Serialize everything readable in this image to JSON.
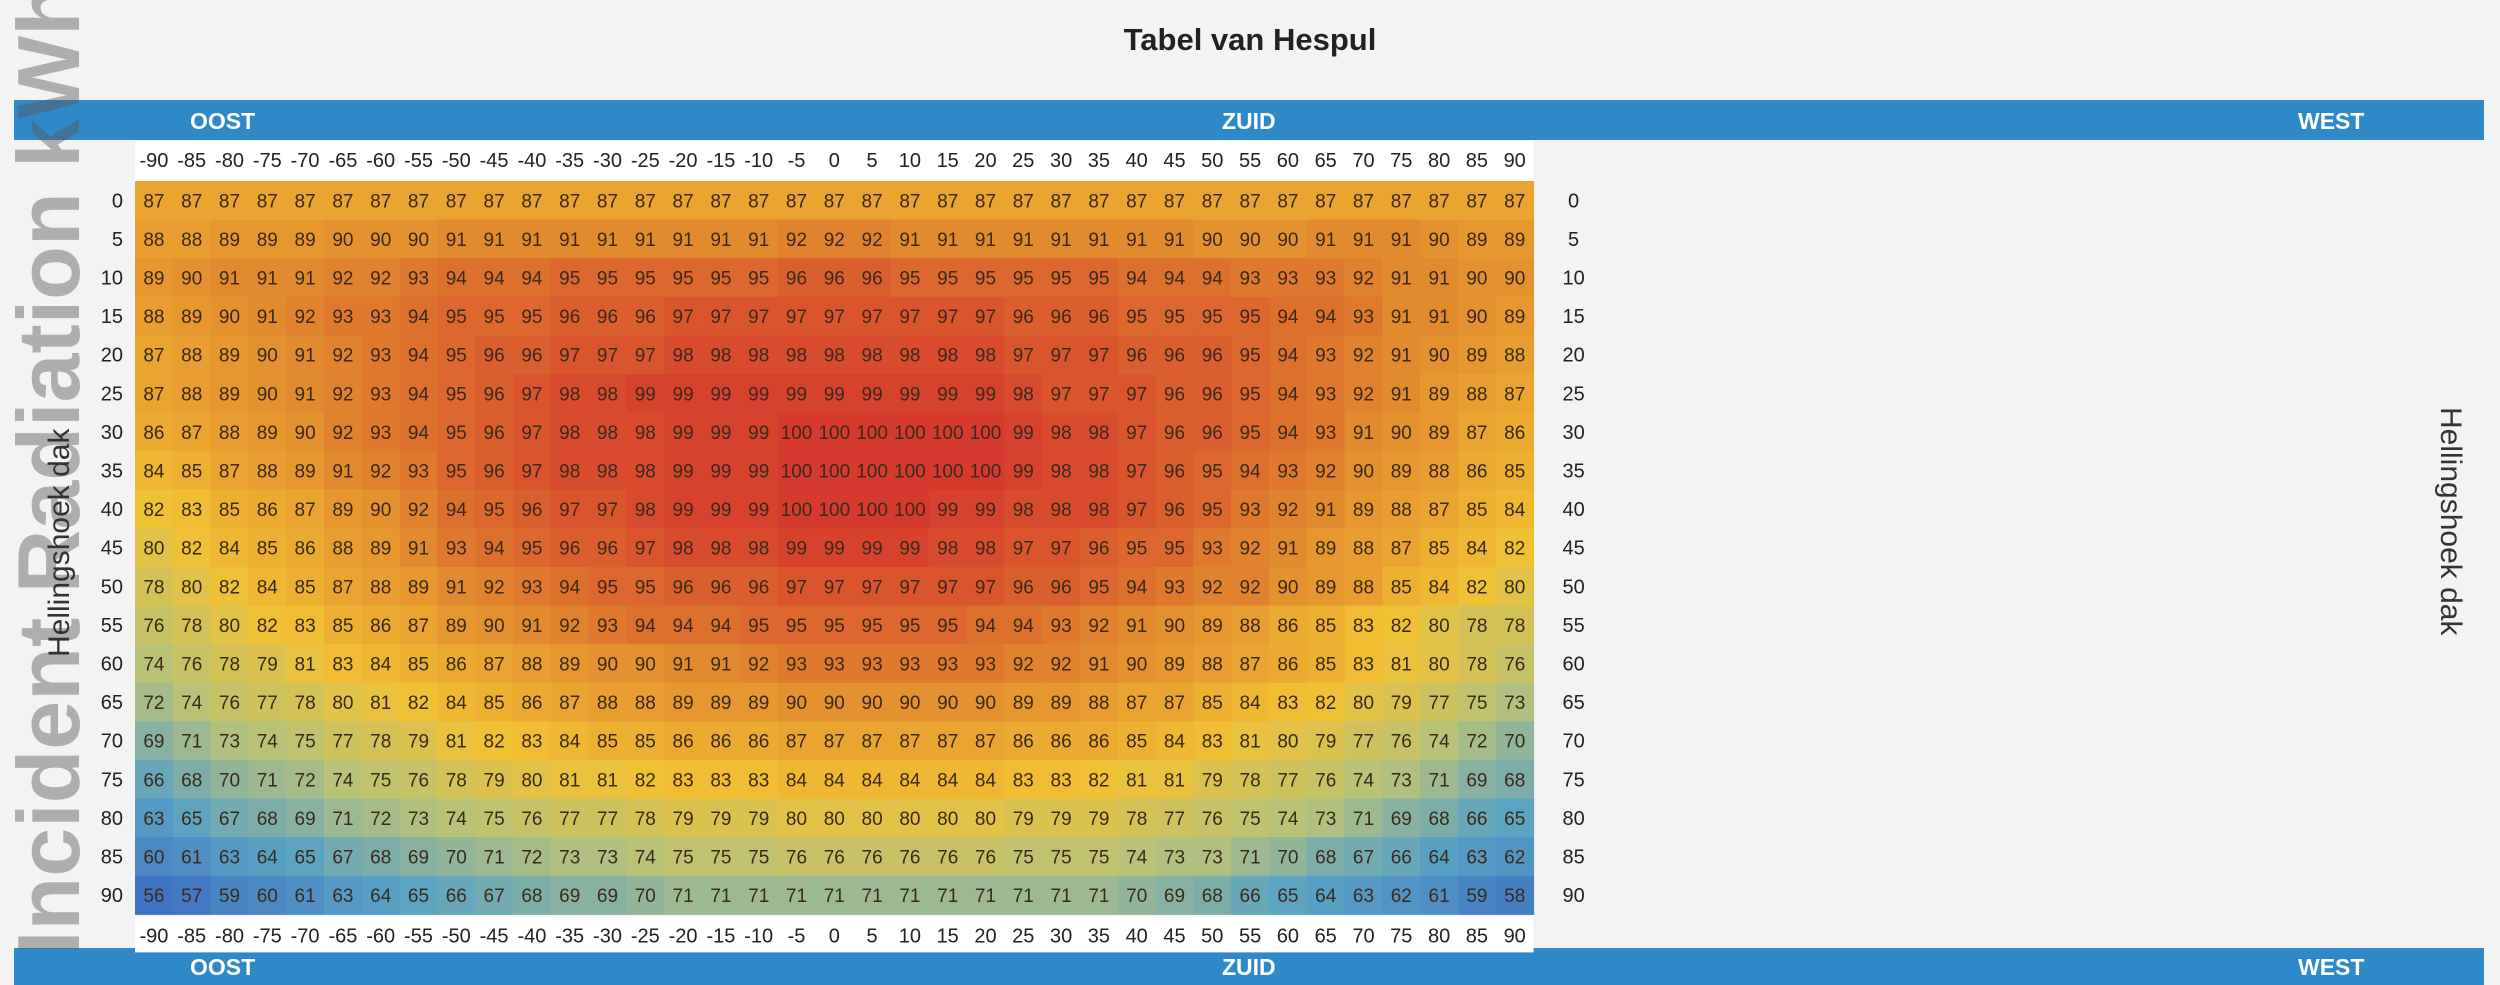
{
  "chart_data": {
    "type": "heatmap",
    "title": "Tabel van Hespul",
    "watermark": "Incident Radiation kWh/day/m",
    "top_band": {
      "left": "OOST",
      "center": "ZUID",
      "right": "WEST"
    },
    "bottom_band": {
      "left": "OOST",
      "center": "ZUID",
      "right": "WEST"
    },
    "ylabel_left": "Hellingshoek dak",
    "ylabel_right": "Hellingshoek dak",
    "x": [
      -90,
      -85,
      -80,
      -75,
      -70,
      -65,
      -60,
      -55,
      -50,
      -45,
      -40,
      -35,
      -30,
      -25,
      -20,
      -15,
      -10,
      -5,
      0,
      5,
      10,
      15,
      20,
      25,
      30,
      35,
      40,
      45,
      50,
      55,
      60,
      65,
      70,
      75,
      80,
      85,
      90
    ],
    "y": [
      0,
      5,
      10,
      15,
      20,
      25,
      30,
      35,
      40,
      45,
      50,
      55,
      60,
      65,
      70,
      75,
      80,
      85,
      90
    ],
    "values": [
      [
        87,
        87,
        87,
        87,
        87,
        87,
        87,
        87,
        87,
        87,
        87,
        87,
        87,
        87,
        87,
        87,
        87,
        87,
        87,
        87,
        87,
        87,
        87,
        87,
        87,
        87,
        87,
        87,
        87,
        87,
        87,
        87,
        87,
        87,
        87,
        87,
        87
      ],
      [
        88,
        88,
        89,
        89,
        89,
        90,
        90,
        90,
        91,
        91,
        91,
        91,
        91,
        91,
        91,
        91,
        91,
        92,
        92,
        92,
        91,
        91,
        91,
        91,
        91,
        91,
        91,
        91,
        90,
        90,
        90,
        91,
        91,
        91,
        90,
        89,
        89
      ],
      [
        89,
        90,
        91,
        91,
        91,
        92,
        92,
        93,
        94,
        94,
        94,
        95,
        95,
        95,
        95,
        95,
        95,
        96,
        96,
        96,
        95,
        95,
        95,
        95,
        95,
        95,
        94,
        94,
        94,
        93,
        93,
        93,
        92,
        91,
        91,
        90,
        90
      ],
      [
        88,
        89,
        90,
        91,
        92,
        93,
        93,
        94,
        95,
        95,
        95,
        96,
        96,
        96,
        97,
        97,
        97,
        97,
        97,
        97,
        97,
        97,
        97,
        96,
        96,
        96,
        95,
        95,
        95,
        95,
        94,
        94,
        93,
        91,
        91,
        90,
        89
      ],
      [
        87,
        88,
        89,
        90,
        91,
        92,
        93,
        94,
        95,
        96,
        96,
        97,
        97,
        97,
        98,
        98,
        98,
        98,
        98,
        98,
        98,
        98,
        98,
        97,
        97,
        97,
        96,
        96,
        96,
        95,
        94,
        93,
        92,
        91,
        90,
        89,
        88
      ],
      [
        87,
        88,
        89,
        90,
        91,
        92,
        93,
        94,
        95,
        96,
        97,
        98,
        98,
        99,
        99,
        99,
        99,
        99,
        99,
        99,
        99,
        99,
        99,
        98,
        97,
        97,
        97,
        96,
        96,
        95,
        94,
        93,
        92,
        91,
        89,
        88,
        87
      ],
      [
        86,
        87,
        88,
        89,
        90,
        92,
        93,
        94,
        95,
        96,
        97,
        98,
        98,
        98,
        99,
        99,
        99,
        100,
        100,
        100,
        100,
        100,
        100,
        99,
        98,
        98,
        97,
        96,
        96,
        95,
        94,
        93,
        91,
        90,
        89,
        87,
        86
      ],
      [
        84,
        85,
        87,
        88,
        89,
        91,
        92,
        93,
        95,
        96,
        97,
        98,
        98,
        98,
        99,
        99,
        99,
        100,
        100,
        100,
        100,
        100,
        100,
        99,
        98,
        98,
        97,
        96,
        95,
        94,
        93,
        92,
        90,
        89,
        88,
        86,
        85
      ],
      [
        82,
        83,
        85,
        86,
        87,
        89,
        90,
        92,
        94,
        95,
        96,
        97,
        97,
        98,
        99,
        99,
        99,
        100,
        100,
        100,
        100,
        99,
        99,
        98,
        98,
        98,
        97,
        96,
        95,
        93,
        92,
        91,
        89,
        88,
        87,
        85,
        84
      ],
      [
        80,
        82,
        84,
        85,
        86,
        88,
        89,
        91,
        93,
        94,
        95,
        96,
        96,
        97,
        98,
        98,
        98,
        99,
        99,
        99,
        99,
        98,
        98,
        97,
        97,
        96,
        95,
        95,
        93,
        92,
        91,
        89,
        88,
        87,
        85,
        84,
        82
      ],
      [
        78,
        80,
        82,
        84,
        85,
        87,
        88,
        89,
        91,
        92,
        93,
        94,
        95,
        95,
        96,
        96,
        96,
        97,
        97,
        97,
        97,
        97,
        97,
        96,
        96,
        95,
        94,
        93,
        92,
        92,
        90,
        89,
        88,
        85,
        84,
        82,
        80
      ],
      [
        76,
        78,
        80,
        82,
        83,
        85,
        86,
        87,
        89,
        90,
        91,
        92,
        93,
        94,
        94,
        94,
        95,
        95,
        95,
        95,
        95,
        95,
        94,
        94,
        93,
        92,
        91,
        90,
        89,
        88,
        86,
        85,
        83,
        82,
        80,
        78,
        78
      ],
      [
        74,
        76,
        78,
        79,
        81,
        83,
        84,
        85,
        86,
        87,
        88,
        89,
        90,
        90,
        91,
        91,
        92,
        93,
        93,
        93,
        93,
        93,
        93,
        92,
        92,
        91,
        90,
        89,
        88,
        87,
        86,
        85,
        83,
        81,
        80,
        78,
        76
      ],
      [
        72,
        74,
        76,
        77,
        78,
        80,
        81,
        82,
        84,
        85,
        86,
        87,
        88,
        88,
        89,
        89,
        89,
        90,
        90,
        90,
        90,
        90,
        90,
        89,
        89,
        88,
        87,
        87,
        85,
        84,
        83,
        82,
        80,
        79,
        77,
        75,
        73
      ],
      [
        69,
        71,
        73,
        74,
        75,
        77,
        78,
        79,
        81,
        82,
        83,
        84,
        85,
        85,
        86,
        86,
        86,
        87,
        87,
        87,
        87,
        87,
        87,
        86,
        86,
        86,
        85,
        84,
        83,
        81,
        80,
        79,
        77,
        76,
        74,
        72,
        70
      ],
      [
        66,
        68,
        70,
        71,
        72,
        74,
        75,
        76,
        78,
        79,
        80,
        81,
        81,
        82,
        83,
        83,
        83,
        84,
        84,
        84,
        84,
        84,
        84,
        83,
        83,
        82,
        81,
        81,
        79,
        78,
        77,
        76,
        74,
        73,
        71,
        69,
        68
      ],
      [
        63,
        65,
        67,
        68,
        69,
        71,
        72,
        73,
        74,
        75,
        76,
        77,
        77,
        78,
        79,
        79,
        79,
        80,
        80,
        80,
        80,
        80,
        80,
        79,
        79,
        79,
        78,
        77,
        76,
        75,
        74,
        73,
        71,
        69,
        68,
        66,
        65
      ],
      [
        60,
        61,
        63,
        64,
        65,
        67,
        68,
        69,
        70,
        71,
        72,
        73,
        73,
        74,
        75,
        75,
        75,
        76,
        76,
        76,
        76,
        76,
        76,
        75,
        75,
        75,
        74,
        73,
        73,
        71,
        70,
        68,
        67,
        66,
        64,
        63,
        62
      ],
      [
        56,
        57,
        59,
        60,
        61,
        63,
        64,
        65,
        66,
        67,
        68,
        69,
        69,
        70,
        71,
        71,
        71,
        71,
        71,
        71,
        71,
        71,
        71,
        71,
        71,
        71,
        70,
        69,
        68,
        66,
        65,
        64,
        63,
        62,
        61,
        59,
        58
      ]
    ],
    "color_scale": [
      "#3f74c2",
      "#5ba3c4",
      "#b7c27b",
      "#f2c233",
      "#e28a2e",
      "#d6392e"
    ]
  }
}
